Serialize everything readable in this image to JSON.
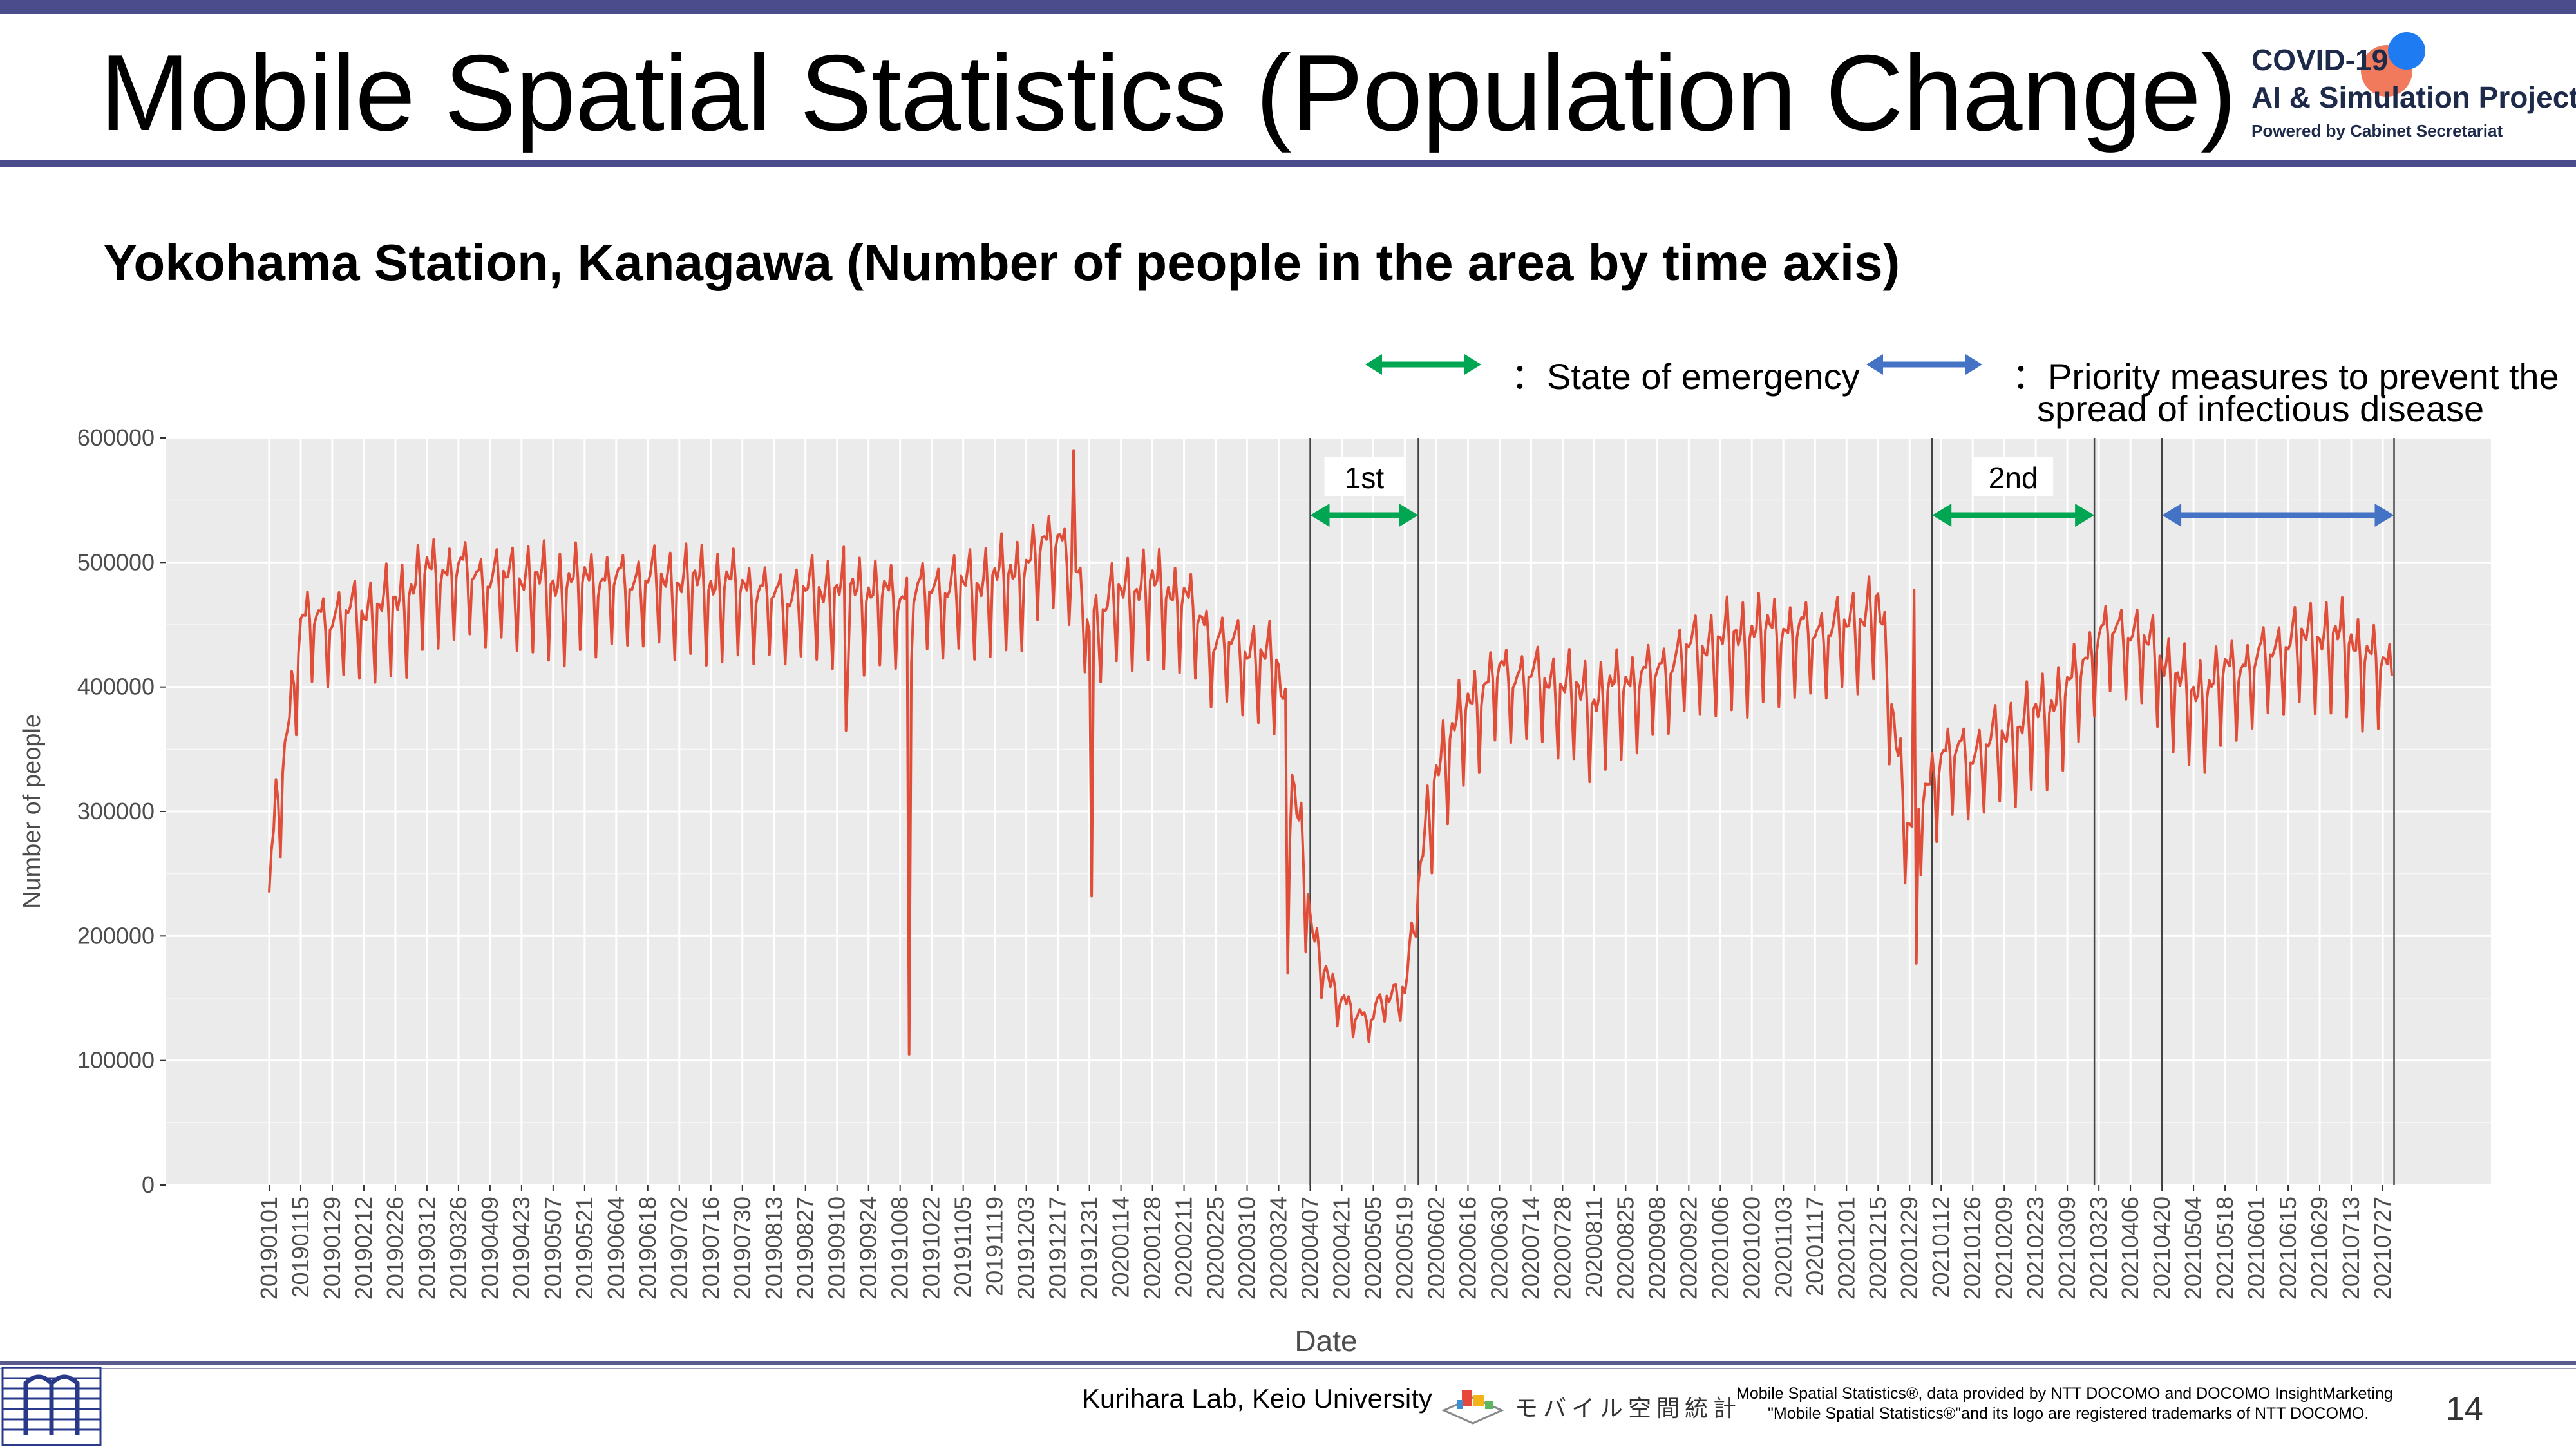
{
  "page": {
    "title": "Mobile Spatial Statistics (Population Change)",
    "subtitle": "Yokohama Station, Kanagawa (Number of people in the area by time axis)",
    "page_number": "14"
  },
  "logo": {
    "line1": "COVID-19",
    "line2": "AI & Simulation Project",
    "line3": "Powered by Cabinet Secretariat"
  },
  "legend": {
    "emergency": "：State of emergency",
    "priority_line1": "：Priority measures to prevent the",
    "priority_line2": "spread of infectious disease",
    "emergency_color": "#00a651",
    "priority_color": "#4472c4"
  },
  "footer": {
    "lab": "Kurihara Lab, Keio University",
    "jp_brand": "モバイル空間統計",
    "notice1": "Mobile Spatial Statistics®, data provided by NTT DOCOMO and DOCOMO InsightMarketing",
    "notice2": "\"Mobile Spatial Statistics®\"and its logo are registered trademarks of NTT DOCOMO."
  },
  "chart_data": {
    "type": "line",
    "xlabel": "Date",
    "ylabel": "Number of people",
    "ylim": [
      0,
      600000
    ],
    "yticks": [
      0,
      100000,
      200000,
      300000,
      400000,
      500000,
      600000
    ],
    "grid": true,
    "line_color": "#e04e39",
    "x_tick_labels": [
      "20190101",
      "20190115",
      "20190129",
      "20190212",
      "20190226",
      "20190312",
      "20190326",
      "20190409",
      "20190423",
      "20190507",
      "20190521",
      "20190604",
      "20190618",
      "20190702",
      "20190716",
      "20190730",
      "20190813",
      "20190827",
      "20190910",
      "20190924",
      "20191008",
      "20191022",
      "20191105",
      "20191119",
      "20191203",
      "20191217",
      "20191231",
      "20200114",
      "20200128",
      "20200211",
      "20200225",
      "20200310",
      "20200324",
      "20200407",
      "20200421",
      "20200505",
      "20200519",
      "20200602",
      "20200616",
      "20200630",
      "20200714",
      "20200728",
      "20200811",
      "20200825",
      "20200908",
      "20200922",
      "20201006",
      "20201020",
      "20201103",
      "20201117",
      "20201201",
      "20201215",
      "20201229",
      "20210112",
      "20210126",
      "20210209",
      "20210223",
      "20210309",
      "20210323",
      "20210406",
      "20210420",
      "20210504",
      "20210518",
      "20210601",
      "20210615",
      "20210629",
      "20210713",
      "20210727"
    ],
    "x_start": "2019-01-01",
    "x_end": "2021-07-31",
    "periods": [
      {
        "label": "1st",
        "type": "emergency",
        "start": "2020-04-07",
        "end": "2020-05-25"
      },
      {
        "label": "2nd",
        "type": "emergency",
        "start": "2021-01-08",
        "end": "2021-03-21"
      },
      {
        "label": "",
        "type": "priority",
        "start": "2021-04-20",
        "end": "2021-08-01"
      }
    ],
    "series": [
      {
        "values_biweekly": [
          {
            "x": "2019-01-01",
            "y": 235000
          },
          {
            "x": "2019-01-15",
            "y": 435000
          },
          {
            "x": "2019-01-29",
            "y": 440000
          },
          {
            "x": "2019-02-12",
            "y": 445000
          },
          {
            "x": "2019-02-26",
            "y": 450000
          },
          {
            "x": "2019-03-12",
            "y": 475000
          },
          {
            "x": "2019-03-26",
            "y": 478000
          },
          {
            "x": "2019-04-09",
            "y": 470000
          },
          {
            "x": "2019-04-23",
            "y": 472000
          },
          {
            "x": "2019-05-07",
            "y": 465000
          },
          {
            "x": "2019-05-21",
            "y": 470000
          },
          {
            "x": "2019-06-04",
            "y": 468000
          },
          {
            "x": "2019-06-18",
            "y": 470000
          },
          {
            "x": "2019-07-02",
            "y": 468000
          },
          {
            "x": "2019-07-16",
            "y": 466000
          },
          {
            "x": "2019-07-30",
            "y": 465000
          },
          {
            "x": "2019-08-13",
            "y": 455000
          },
          {
            "x": "2019-08-27",
            "y": 460000
          },
          {
            "x": "2019-09-10",
            "y": 462000
          },
          {
            "x": "2019-09-24",
            "y": 460000
          },
          {
            "x": "2019-10-08",
            "y": 455000
          },
          {
            "x": "2019-10-22",
            "y": 462000
          },
          {
            "x": "2019-11-05",
            "y": 465000
          },
          {
            "x": "2019-11-19",
            "y": 470000
          },
          {
            "x": "2019-12-03",
            "y": 480000
          },
          {
            "x": "2019-12-17",
            "y": 510000
          },
          {
            "x": "2019-12-31",
            "y": 435000
          },
          {
            "x": "2020-01-14",
            "y": 460000
          },
          {
            "x": "2020-01-28",
            "y": 465000
          },
          {
            "x": "2020-02-11",
            "y": 455000
          },
          {
            "x": "2020-02-25",
            "y": 420000
          },
          {
            "x": "2020-03-10",
            "y": 415000
          },
          {
            "x": "2020-03-24",
            "y": 400000
          },
          {
            "x": "2020-04-07",
            "y": 200000
          },
          {
            "x": "2020-04-21",
            "y": 135000
          },
          {
            "x": "2020-05-05",
            "y": 130000
          },
          {
            "x": "2020-05-19",
            "y": 155000
          },
          {
            "x": "2020-06-02",
            "y": 320000
          },
          {
            "x": "2020-06-16",
            "y": 370000
          },
          {
            "x": "2020-06-30",
            "y": 395000
          },
          {
            "x": "2020-07-14",
            "y": 392000
          },
          {
            "x": "2020-07-28",
            "y": 385000
          },
          {
            "x": "2020-08-11",
            "y": 372000
          },
          {
            "x": "2020-08-25",
            "y": 388000
          },
          {
            "x": "2020-09-08",
            "y": 395000
          },
          {
            "x": "2020-09-22",
            "y": 415000
          },
          {
            "x": "2020-10-06",
            "y": 420000
          },
          {
            "x": "2020-10-20",
            "y": 428000
          },
          {
            "x": "2020-11-03",
            "y": 430000
          },
          {
            "x": "2020-11-17",
            "y": 428000
          },
          {
            "x": "2020-12-01",
            "y": 432000
          },
          {
            "x": "2020-12-15",
            "y": 450000
          },
          {
            "x": "2020-12-29",
            "y": 265000
          },
          {
            "x": "2021-01-12",
            "y": 330000
          },
          {
            "x": "2021-01-26",
            "y": 330000
          },
          {
            "x": "2021-02-09",
            "y": 345000
          },
          {
            "x": "2021-02-23",
            "y": 360000
          },
          {
            "x": "2021-03-09",
            "y": 380000
          },
          {
            "x": "2021-03-23",
            "y": 425000
          },
          {
            "x": "2021-04-06",
            "y": 430000
          },
          {
            "x": "2021-04-20",
            "y": 405000
          },
          {
            "x": "2021-05-04",
            "y": 375000
          },
          {
            "x": "2021-05-18",
            "y": 395000
          },
          {
            "x": "2021-06-01",
            "y": 405000
          },
          {
            "x": "2021-06-15",
            "y": 420000
          },
          {
            "x": "2021-06-29",
            "y": 425000
          },
          {
            "x": "2021-07-13",
            "y": 420000
          },
          {
            "x": "2021-07-27",
            "y": 400000
          }
        ],
        "weekday_weekend_amplitude": 45000,
        "spikes": [
          {
            "x": "2019-09-14",
            "y": 365000
          },
          {
            "x": "2019-10-12",
            "y": 105000
          },
          {
            "x": "2019-12-24",
            "y": 590000
          },
          {
            "x": "2020-01-01",
            "y": 232000
          },
          {
            "x": "2020-03-28",
            "y": 170000
          },
          {
            "x": "2020-12-31",
            "y": 478000
          },
          {
            "x": "2021-01-01",
            "y": 178000
          }
        ]
      }
    ]
  }
}
